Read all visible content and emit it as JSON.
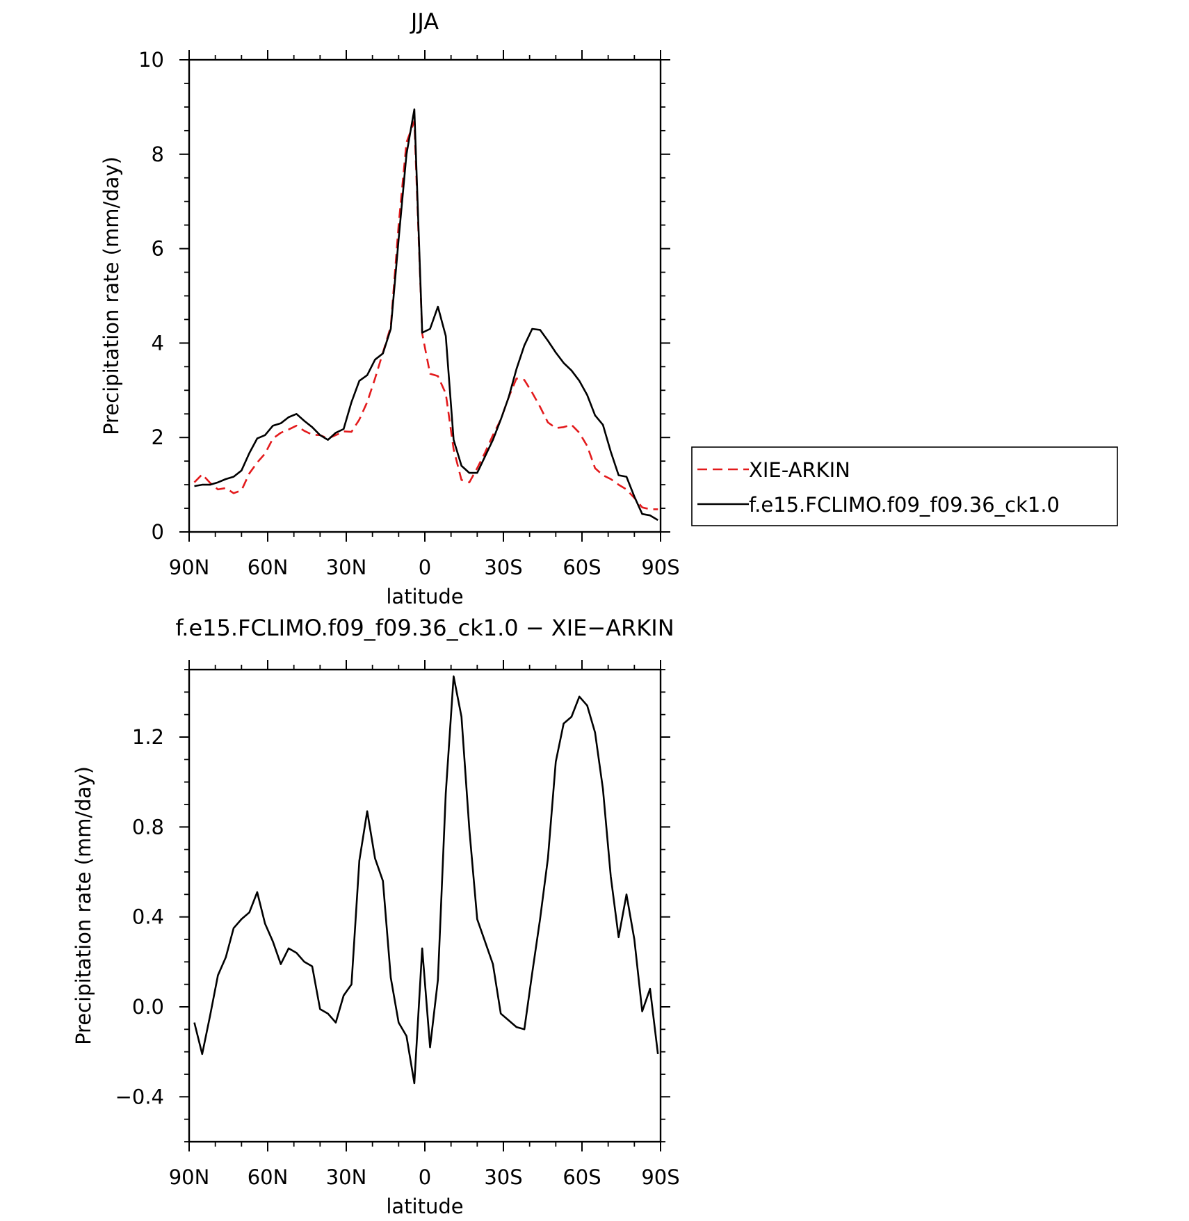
{
  "chart_data": [
    {
      "type": "line",
      "title": "JJA",
      "xlabel": "latitude",
      "ylabel": "Precipitation rate (mm/day)",
      "xlim": [
        90,
        -90
      ],
      "ylim": [
        0,
        10
      ],
      "yticks": [
        0,
        2,
        4,
        6,
        8,
        10
      ],
      "ytick_labels": [
        "0",
        "2",
        "4",
        "6",
        "8",
        "10"
      ],
      "xticks": [
        90,
        60,
        30,
        0,
        -30,
        -60,
        -90
      ],
      "xtick_labels": [
        "90N",
        "60N",
        "30N",
        "0",
        "30S",
        "60S",
        "90S"
      ],
      "grid": false,
      "legend_position": "right",
      "series": [
        {
          "name": "XIE-ARKIN",
          "color": "#e31a1c",
          "style": "dashed",
          "x": [
            88.0,
            85.0,
            82.0,
            79.0,
            76.0,
            73.0,
            70.0,
            67.0,
            64.0,
            61.0,
            58.0,
            55.0,
            52.0,
            49.0,
            46.0,
            43.0,
            40.0,
            37.0,
            34.0,
            31.0,
            28.0,
            25.0,
            22.0,
            19.0,
            16.0,
            13.0,
            10.0,
            7.0,
            4.0,
            1.0,
            -2.0,
            -5.0,
            -8.0,
            -11.0,
            -14.0,
            -17.0,
            -20.0,
            -23.0,
            -26.0,
            -29.0,
            -32.0,
            -35.0,
            -38.0,
            -41.0,
            -44.0,
            -47.0,
            -50.0,
            -53.0,
            -56.0,
            -59.0,
            -62.0,
            -65.0,
            -68.0,
            -71.0,
            -74.0,
            -77.0,
            -80.0,
            -83.0,
            -86.0,
            -89.0
          ],
          "values": [
            1.05,
            1.22,
            1.04,
            0.9,
            0.93,
            0.82,
            0.88,
            1.24,
            1.47,
            1.66,
            1.98,
            2.1,
            2.17,
            2.25,
            2.14,
            2.06,
            2.05,
            1.98,
            2.05,
            2.13,
            2.12,
            2.38,
            2.75,
            3.25,
            3.8,
            4.35,
            6.5,
            8.25,
            8.7,
            4.2,
            3.35,
            3.3,
            2.93,
            1.75,
            1.1,
            1.05,
            1.35,
            1.68,
            2.05,
            2.38,
            2.85,
            3.25,
            3.22,
            2.95,
            2.65,
            2.32,
            2.2,
            2.22,
            2.27,
            2.1,
            1.82,
            1.35,
            1.2,
            1.12,
            1.0,
            0.9,
            0.72,
            0.52,
            0.48,
            0.48
          ]
        },
        {
          "name": "f.e15.FCLIMO.f09_f09.36_ck1.0",
          "color": "#000000",
          "style": "solid",
          "x": [
            88.0,
            85.0,
            82.0,
            79.0,
            76.0,
            73.0,
            70.0,
            67.0,
            64.0,
            61.0,
            58.0,
            55.0,
            52.0,
            49.0,
            46.0,
            43.0,
            40.0,
            37.0,
            34.0,
            31.0,
            28.0,
            25.0,
            22.0,
            19.0,
            16.0,
            13.0,
            10.0,
            7.0,
            4.0,
            1.0,
            -2.0,
            -5.0,
            -8.0,
            -11.0,
            -14.0,
            -17.0,
            -20.0,
            -23.0,
            -26.0,
            -29.0,
            -32.0,
            -35.0,
            -38.0,
            -41.0,
            -44.0,
            -47.0,
            -50.0,
            -53.0,
            -56.0,
            -59.0,
            -62.0,
            -65.0,
            -68.0,
            -71.0,
            -74.0,
            -77.0,
            -80.0,
            -83.0,
            -86.0,
            -89.0
          ],
          "values": [
            0.97,
            1.0,
            1.0,
            1.05,
            1.12,
            1.17,
            1.3,
            1.67,
            1.98,
            2.05,
            2.25,
            2.3,
            2.43,
            2.5,
            2.35,
            2.22,
            2.05,
            1.95,
            2.1,
            2.18,
            2.75,
            3.2,
            3.32,
            3.65,
            3.78,
            4.3,
            6.2,
            8.0,
            8.95,
            4.22,
            4.3,
            4.77,
            4.15,
            1.95,
            1.4,
            1.25,
            1.25,
            1.6,
            1.95,
            2.38,
            2.85,
            3.45,
            3.95,
            4.3,
            4.28,
            4.05,
            3.8,
            3.58,
            3.42,
            3.2,
            2.9,
            2.47,
            2.27,
            1.7,
            1.2,
            1.17,
            0.75,
            0.38,
            0.35,
            0.25
          ]
        }
      ]
    },
    {
      "type": "line",
      "title": "f.e15.FCLIMO.f09_f09.36_ck1.0 − XIE−ARKIN",
      "xlabel": "latitude",
      "ylabel": "Precipitation rate (mm/day)",
      "xlim": [
        90,
        -90
      ],
      "ylim": [
        -0.6,
        1.5
      ],
      "yticks": [
        -0.4,
        0.0,
        0.4,
        0.8,
        1.2
      ],
      "ytick_labels": [
        "−0.4",
        "0.0",
        "0.4",
        "0.8",
        "1.2"
      ],
      "xticks": [
        90,
        60,
        30,
        0,
        -30,
        -60,
        -90
      ],
      "xtick_labels": [
        "90N",
        "60N",
        "30N",
        "0",
        "30S",
        "60S",
        "90S"
      ],
      "grid": false,
      "series": [
        {
          "color": "#000000",
          "style": "solid",
          "x": [
            88.0,
            85.0,
            82.0,
            79.0,
            76.0,
            73.0,
            70.0,
            67.0,
            64.0,
            61.0,
            58.0,
            55.0,
            52.0,
            49.0,
            46.0,
            43.0,
            40.0,
            37.0,
            34.0,
            31.0,
            28.0,
            25.0,
            22.0,
            19.0,
            16.0,
            13.0,
            10.0,
            7.0,
            4.0,
            1.0,
            -2.0,
            -5.0,
            -8.0,
            -11.0,
            -14.0,
            -17.0,
            -20.0,
            -23.0,
            -26.0,
            -29.0,
            -32.0,
            -35.0,
            -38.0,
            -41.0,
            -44.0,
            -47.0,
            -50.0,
            -53.0,
            -56.0,
            -59.0,
            -62.0,
            -65.0,
            -68.0,
            -71.0,
            -74.0,
            -77.0,
            -80.0,
            -83.0,
            -86.0,
            -89.0
          ],
          "values": [
            -0.07,
            -0.21,
            -0.04,
            0.14,
            0.22,
            0.35,
            0.39,
            0.42,
            0.51,
            0.37,
            0.29,
            0.19,
            0.26,
            0.24,
            0.2,
            0.18,
            -0.01,
            -0.03,
            -0.07,
            0.05,
            0.1,
            0.65,
            0.87,
            0.66,
            0.56,
            0.13,
            -0.07,
            -0.13,
            -0.34,
            0.26,
            -0.18,
            0.12,
            0.95,
            1.47,
            1.29,
            0.79,
            0.39,
            0.29,
            0.19,
            -0.03,
            -0.06,
            -0.09,
            -0.1,
            0.15,
            0.39,
            0.66,
            1.09,
            1.26,
            1.29,
            1.38,
            1.34,
            1.22,
            0.97,
            0.58,
            0.31,
            0.5,
            0.3,
            -0.02,
            0.08,
            -0.21
          ]
        }
      ]
    }
  ]
}
